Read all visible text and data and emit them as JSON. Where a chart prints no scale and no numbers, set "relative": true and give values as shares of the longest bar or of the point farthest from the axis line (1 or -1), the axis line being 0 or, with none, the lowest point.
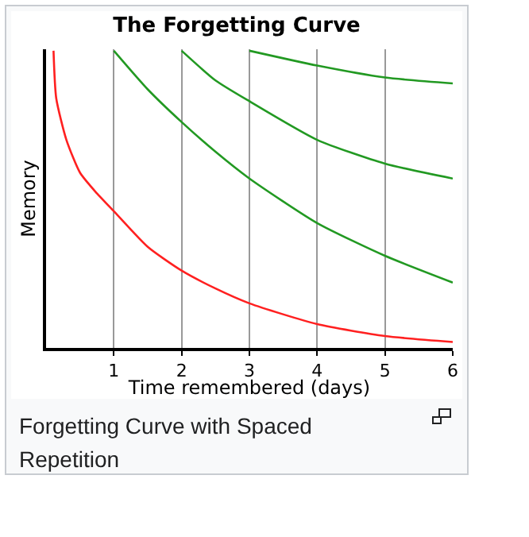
{
  "chart_data": {
    "type": "line",
    "title": "The Forgetting Curve",
    "xlabel": "Time remembered (days)",
    "ylabel": "Memory",
    "relative": true,
    "xlim": [
      0,
      6
    ],
    "xticks": [
      1,
      2,
      3,
      4,
      5,
      6
    ],
    "grid": "x",
    "marker": "none",
    "line_style": "solid",
    "series": [
      {
        "color": "#ff2020",
        "x": [
          0.11,
          0.15,
          0.3,
          0.5,
          0.75,
          1,
          1.5,
          2,
          2.5,
          3,
          4,
          5,
          6
        ],
        "values": [
          1,
          0.84,
          0.7,
          0.59,
          0.52,
          0.46,
          0.34,
          0.26,
          0.2,
          0.15,
          0.08,
          0.04,
          0.02
        ]
      },
      {
        "color": "#229922",
        "x": [
          1,
          1.5,
          2,
          2.5,
          3,
          4,
          5,
          6
        ],
        "values": [
          1,
          0.87,
          0.76,
          0.66,
          0.57,
          0.42,
          0.31,
          0.22
        ]
      },
      {
        "color": "#229922",
        "x": [
          2,
          2.5,
          3,
          4,
          5,
          6
        ],
        "values": [
          1,
          0.9,
          0.83,
          0.7,
          0.62,
          0.57
        ]
      },
      {
        "color": "#229922",
        "x": [
          3,
          4,
          5,
          6
        ],
        "values": [
          1,
          0.95,
          0.91,
          0.89
        ]
      }
    ],
    "annotations": [
      "Forgetting Curve with Spaced Repetition"
    ]
  }
}
